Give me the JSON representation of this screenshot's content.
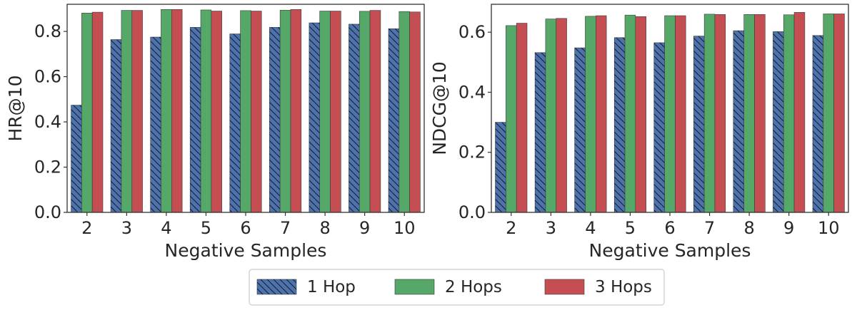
{
  "legend": {
    "placement": "bottom-center",
    "entries": [
      "1 Hop",
      "2 Hops",
      "3 Hops"
    ]
  },
  "colors": {
    "1 Hop": "#4c72b0",
    "2 Hops": "#55a868",
    "3 Hops": "#c44e52"
  },
  "chart_data": [
    {
      "type": "bar",
      "title": "",
      "xlabel": "Negative Samples",
      "ylabel": "HR@10",
      "categories": [
        "2",
        "3",
        "4",
        "5",
        "6",
        "7",
        "8",
        "9",
        "10"
      ],
      "ylim": [
        0,
        0.92
      ],
      "yticks": [
        "0.0",
        "0.2",
        "0.4",
        "0.6",
        "0.8"
      ],
      "grid": false,
      "series": [
        {
          "name": "1 Hop",
          "values": [
            0.474,
            0.764,
            0.775,
            0.818,
            0.789,
            0.818,
            0.838,
            0.832,
            0.812
          ]
        },
        {
          "name": "2 Hops",
          "values": [
            0.881,
            0.893,
            0.897,
            0.895,
            0.892,
            0.894,
            0.89,
            0.889,
            0.888
          ]
        },
        {
          "name": "3 Hops",
          "values": [
            0.885,
            0.893,
            0.897,
            0.89,
            0.89,
            0.897,
            0.89,
            0.893,
            0.886
          ]
        }
      ]
    },
    {
      "type": "bar",
      "title": "",
      "xlabel": "Negative Samples",
      "ylabel": "NDCG@10",
      "categories": [
        "2",
        "3",
        "4",
        "5",
        "6",
        "7",
        "8",
        "9",
        "10"
      ],
      "ylim": [
        0,
        0.693
      ],
      "yticks": [
        "0.0",
        "0.2",
        "0.4",
        "0.6"
      ],
      "grid": false,
      "series": [
        {
          "name": "1 Hop",
          "values": [
            0.3,
            0.532,
            0.548,
            0.582,
            0.565,
            0.587,
            0.605,
            0.602,
            0.589
          ]
        },
        {
          "name": "2 Hops",
          "values": [
            0.622,
            0.644,
            0.653,
            0.657,
            0.655,
            0.66,
            0.659,
            0.658,
            0.661
          ]
        },
        {
          "name": "3 Hops",
          "values": [
            0.63,
            0.646,
            0.655,
            0.652,
            0.655,
            0.659,
            0.659,
            0.666,
            0.661
          ]
        }
      ]
    }
  ]
}
